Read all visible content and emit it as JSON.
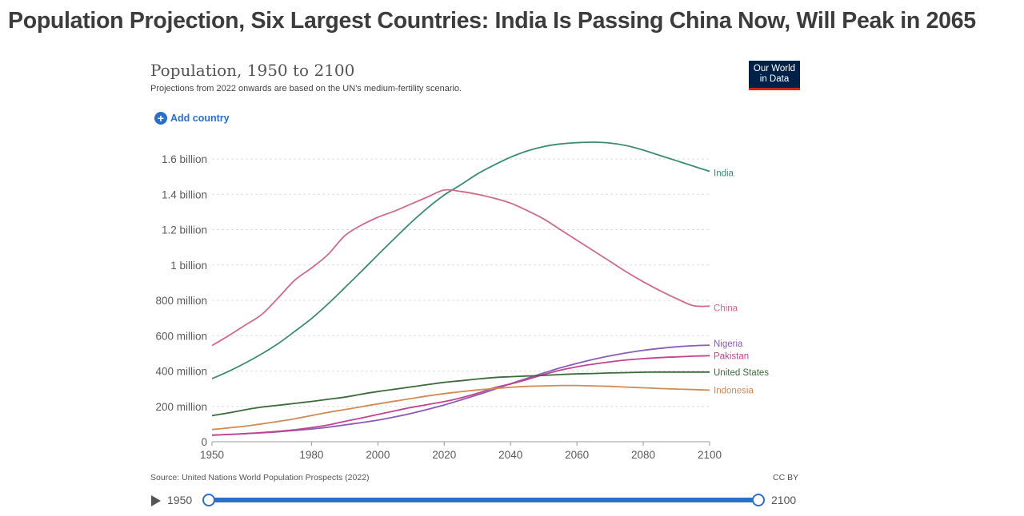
{
  "headline": "Population Projection, Six Largest Countries: India Is Passing China Now, Will Peak in 2065",
  "logo": {
    "line1": "Our World",
    "line2": "in Data"
  },
  "add_country_label": "Add country",
  "source_text": "Source: United Nations World Population Prospects (2022)",
  "license_text": "CC BY",
  "timeline": {
    "start_label": "1950",
    "end_label": "2100"
  },
  "colors": {
    "India": "#3a8c73",
    "China": "#cf6b89",
    "Nigeria": "#8a5cb8",
    "Pakistan": "#c0448f",
    "United States": "#3b6b3b",
    "Indonesia": "#d28a56",
    "grid": "#dddddd",
    "axis_text": "#5a5a5a"
  },
  "chart_data": {
    "type": "line",
    "title": "Population, 1950 to 2100",
    "subtitle": "Projections from 2022 onwards are based on the UN's medium-fertility scenario.",
    "xlabel": "",
    "ylabel": "",
    "xlim": [
      1950,
      2100
    ],
    "ylim": [
      0,
      1700000000
    ],
    "grid": true,
    "x_ticks": [
      {
        "value": 1950,
        "label": "1950"
      },
      {
        "value": 1980,
        "label": "1980"
      },
      {
        "value": 2000,
        "label": "2000"
      },
      {
        "value": 2020,
        "label": "2020"
      },
      {
        "value": 2040,
        "label": "2040"
      },
      {
        "value": 2060,
        "label": "2060"
      },
      {
        "value": 2080,
        "label": "2080"
      },
      {
        "value": 2100,
        "label": "2100"
      }
    ],
    "y_ticks": [
      {
        "value": 0,
        "label": "0"
      },
      {
        "value": 200000000,
        "label": "200 million"
      },
      {
        "value": 400000000,
        "label": "400 million"
      },
      {
        "value": 600000000,
        "label": "600 million"
      },
      {
        "value": 800000000,
        "label": "800 million"
      },
      {
        "value": 1000000000,
        "label": "1 billion"
      },
      {
        "value": 1200000000,
        "label": "1.2 billion"
      },
      {
        "value": 1400000000,
        "label": "1.4 billion"
      },
      {
        "value": 1600000000,
        "label": "1.6 billion"
      }
    ],
    "x": [
      1950,
      1955,
      1960,
      1965,
      1970,
      1975,
      1980,
      1985,
      1990,
      1995,
      2000,
      2005,
      2010,
      2015,
      2020,
      2025,
      2030,
      2035,
      2040,
      2045,
      2050,
      2055,
      2060,
      2065,
      2070,
      2075,
      2080,
      2085,
      2090,
      2095,
      2100
    ],
    "series": [
      {
        "name": "India",
        "values": [
          357000000,
          398000000,
          445000000,
          497000000,
          556000000,
          625000000,
          697000000,
          780000000,
          871000000,
          963000000,
          1057000000,
          1150000000,
          1240000000,
          1323000000,
          1396000000,
          1454000000,
          1515000000,
          1565000000,
          1610000000,
          1645000000,
          1670000000,
          1685000000,
          1692000000,
          1695000000,
          1690000000,
          1675000000,
          1650000000,
          1620000000,
          1590000000,
          1560000000,
          1530000000
        ]
      },
      {
        "name": "China",
        "values": [
          544000000,
          600000000,
          660000000,
          720000000,
          815000000,
          915000000,
          983000000,
          1060000000,
          1165000000,
          1225000000,
          1270000000,
          1305000000,
          1345000000,
          1385000000,
          1424000000,
          1416000000,
          1400000000,
          1378000000,
          1350000000,
          1308000000,
          1260000000,
          1200000000,
          1140000000,
          1080000000,
          1020000000,
          960000000,
          905000000,
          855000000,
          810000000,
          770000000,
          767000000
        ]
      },
      {
        "name": "Nigeria",
        "values": [
          37000000,
          41000000,
          45000000,
          50000000,
          56000000,
          64000000,
          72000000,
          82000000,
          95000000,
          108000000,
          122000000,
          140000000,
          160000000,
          183000000,
          208000000,
          236000000,
          265000000,
          296000000,
          328000000,
          359000000,
          389000000,
          418000000,
          443000000,
          466000000,
          486000000,
          503000000,
          517000000,
          528000000,
          537000000,
          543000000,
          546000000
        ]
      },
      {
        "name": "Pakistan",
        "values": [
          37000000,
          41000000,
          46000000,
          52000000,
          59000000,
          68000000,
          80000000,
          95000000,
          115000000,
          134000000,
          154000000,
          174000000,
          194000000,
          210000000,
          227000000,
          248000000,
          274000000,
          305000000,
          327000000,
          352000000,
          380000000,
          405000000,
          424000000,
          439000000,
          452000000,
          463000000,
          470000000,
          476000000,
          480000000,
          484000000,
          487000000
        ]
      },
      {
        "name": "United States",
        "values": [
          148000000,
          163000000,
          181000000,
          196000000,
          206000000,
          217000000,
          228000000,
          240000000,
          252000000,
          269000000,
          284000000,
          297000000,
          310000000,
          323000000,
          336000000,
          345000000,
          355000000,
          363000000,
          368000000,
          372000000,
          375000000,
          380000000,
          384000000,
          386000000,
          389000000,
          391000000,
          393000000,
          394000000,
          394000000,
          394000000,
          394000000
        ]
      },
      {
        "name": "Indonesia",
        "values": [
          69000000,
          78000000,
          88000000,
          101000000,
          115000000,
          130000000,
          148000000,
          166000000,
          182000000,
          198000000,
          214000000,
          229000000,
          244000000,
          259000000,
          272000000,
          283000000,
          293000000,
          301000000,
          308000000,
          313000000,
          316000000,
          318000000,
          318000000,
          316000000,
          313000000,
          309000000,
          305000000,
          301000000,
          298000000,
          295000000,
          292000000
        ]
      }
    ]
  }
}
